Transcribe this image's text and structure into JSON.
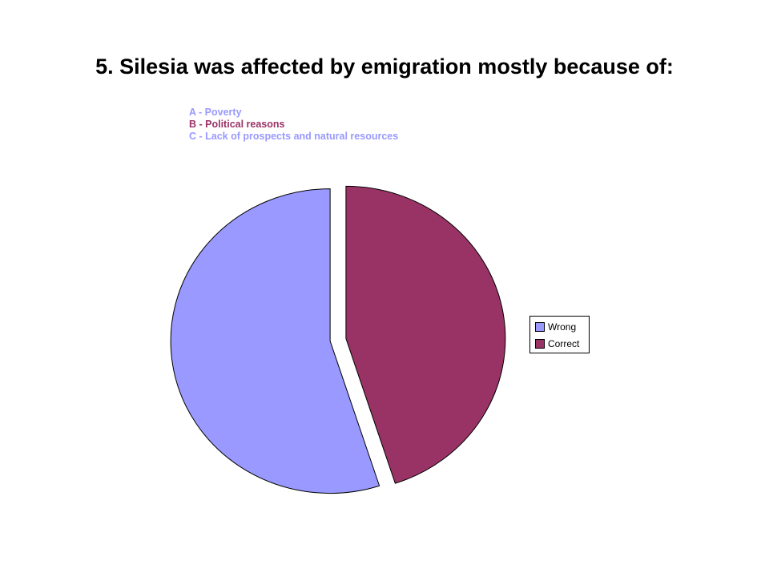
{
  "slide": {
    "title": "5. Silesia was affected by emigration mostly because of:"
  },
  "options": [
    {
      "text": "A - Poverty",
      "color": "#9999ff"
    },
    {
      "text": "B - Political reasons",
      "color": "#993366"
    },
    {
      "text": "C - Lack of prospects and natural resources",
      "color": "#9999ff"
    }
  ],
  "chart_data": {
    "type": "pie",
    "title": "",
    "exploded": true,
    "legend_position": "right",
    "series": [
      {
        "name": "",
        "categories": [
          "Wrong",
          "Correct"
        ],
        "values": [
          55,
          45
        ],
        "colors": [
          "#9999ff",
          "#993366"
        ]
      }
    ]
  }
}
